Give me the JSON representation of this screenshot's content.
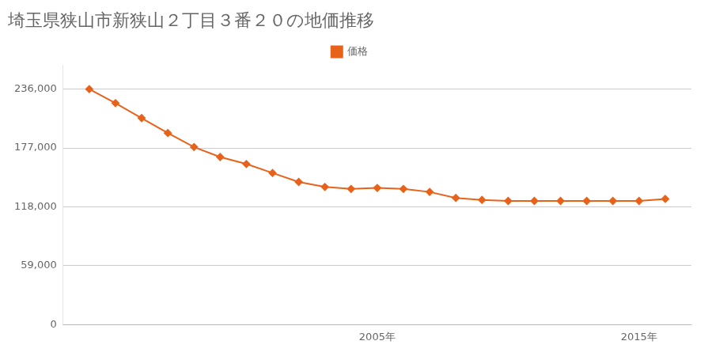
{
  "chart_data": {
    "type": "line",
    "title": "埼玉県狭山市新狭山２丁目３番２０の地価推移",
    "x": [
      1994,
      1995,
      1996,
      1997,
      1998,
      1999,
      2000,
      2001,
      2002,
      2003,
      2004,
      2005,
      2006,
      2007,
      2008,
      2009,
      2010,
      2011,
      2012,
      2013,
      2014,
      2015,
      2016
    ],
    "series": [
      {
        "name": "価格",
        "color": "#e8621a",
        "marker": "diamond",
        "line_style": "solid",
        "values": [
          236000,
          222000,
          207000,
          192000,
          178000,
          168000,
          161000,
          152000,
          143000,
          138000,
          136000,
          137000,
          136000,
          133000,
          127000,
          125000,
          124000,
          124000,
          124000,
          124000,
          124000,
          124000,
          126000
        ]
      }
    ],
    "xlim": [
      1993.0,
      2017.0
    ],
    "xticks": [
      {
        "value": 2005,
        "label": "2005年"
      },
      {
        "value": 2015,
        "label": "2015年"
      }
    ],
    "ylim": [
      0,
      260000
    ],
    "yticks": [
      0,
      {
        "value": 59000,
        "label": "59,000"
      },
      {
        "value": 118000,
        "label": "118,000"
      },
      {
        "value": 177000,
        "label": "177,000"
      },
      {
        "value": 236000,
        "label": "236,000"
      }
    ],
    "grid": "y",
    "legend": "top"
  }
}
